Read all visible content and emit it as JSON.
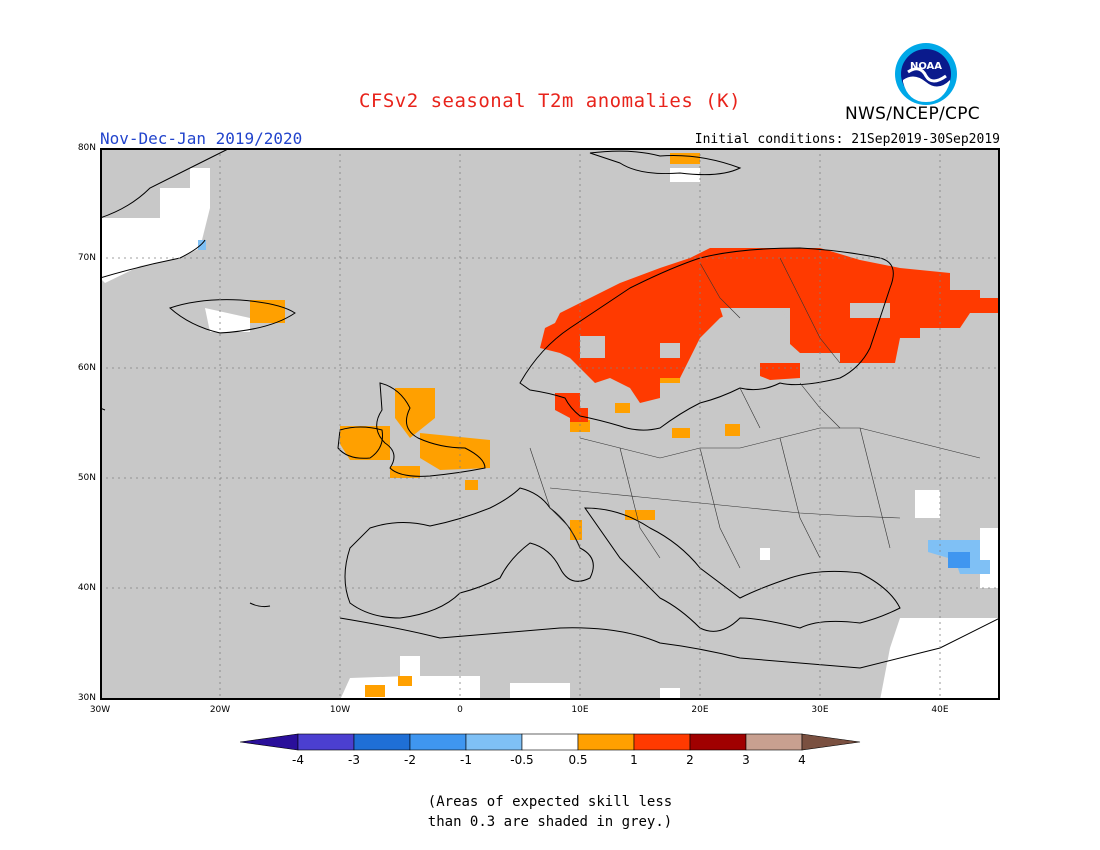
{
  "title": "CFSv2 seasonal T2m anomalies (K)",
  "agency": "NWS/NCEP/CPC",
  "logo_text": "NOAA",
  "period": "Nov-Dec-Jan 2019/2020",
  "initial_conditions": "Initial conditions: 21Sep2019-30Sep2019",
  "lat_labels": [
    "80N",
    "70N",
    "60N",
    "50N",
    "40N",
    "30N"
  ],
  "lon_labels": [
    "30W",
    "20W",
    "10W",
    "0",
    "10E",
    "20E",
    "30E",
    "40E"
  ],
  "colorbar": {
    "labels": [
      "-4",
      "-3",
      "-2",
      "-1",
      "-0.5",
      "0.5",
      "1",
      "2",
      "3",
      "4"
    ],
    "colors": [
      "#2a0f9a",
      "#4b3fd0",
      "#1f6fd6",
      "#3f96f0",
      "#7fc0f5",
      "#ffffff",
      "#ffa000",
      "#ff3a00",
      "#a00000",
      "#c8a090",
      "#7a5040"
    ]
  },
  "note": {
    "line1": "(Areas of expected skill less",
    "line2": "than 0.3 are shaded in grey.)"
  },
  "map": {
    "region": "Europe",
    "lat_range": [
      30,
      80
    ],
    "lon_range": [
      -30,
      45
    ],
    "background_color": "#c8c8c8",
    "anomaly_regions": [
      {
        "area": "Scandinavia & Finland",
        "category": "1 to 2",
        "color": "#ff3a00"
      },
      {
        "area": "British Isles",
        "category": "0.5 to 1",
        "color": "#ffa000"
      },
      {
        "area": "Southern Iceland",
        "category": "0.5 to 1",
        "color": "#ffa000"
      },
      {
        "area": "Svalbard",
        "category": "0.5 to 1",
        "color": "#ffa000"
      },
      {
        "area": "Caucasus",
        "category": "-1 to -0.5",
        "color": "#7fc0f5"
      },
      {
        "area": "Greenland coast",
        "category": "-0.5 to 0.5",
        "color": "#ffffff"
      }
    ]
  }
}
